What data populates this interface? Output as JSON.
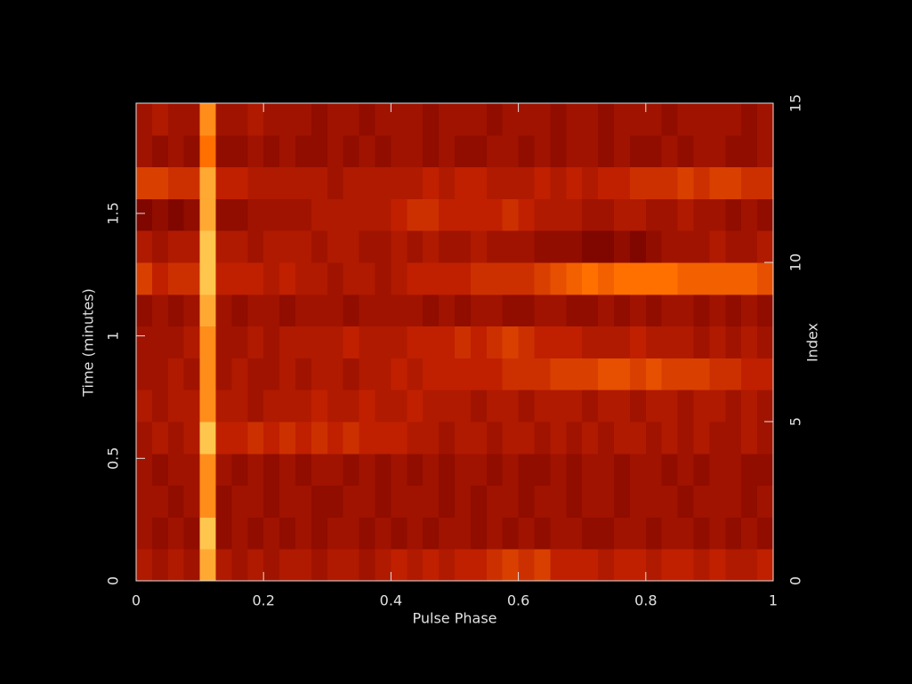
{
  "chart_data": {
    "type": "heatmap",
    "x_label": "Pulse Phase",
    "y_label": "Time (minutes)",
    "y2_label": "Index",
    "xlim": [
      0,
      1
    ],
    "xticks": [
      0,
      0.2,
      0.4,
      0.6,
      0.8,
      1
    ],
    "ylim": [
      0,
      1.95
    ],
    "yticks": [
      0,
      0.5,
      1,
      1.5
    ],
    "y2lim": [
      0,
      15
    ],
    "y2ticks": [
      0,
      5,
      10,
      15
    ],
    "zlim": [
      0,
      1
    ],
    "colormap": [
      "#000000",
      "#700000",
      "#c02000",
      "#ff7000",
      "#ffff80"
    ],
    "z": [
      [
        0.45,
        0.4,
        0.45,
        0.4,
        0.85,
        0.45,
        0.4,
        0.45,
        0.4,
        0.45,
        0.45,
        0.4,
        0.45,
        0.45,
        0.4,
        0.45,
        0.5,
        0.45,
        0.5,
        0.45,
        0.5,
        0.5,
        0.55,
        0.6,
        0.55,
        0.6,
        0.5,
        0.5,
        0.5,
        0.45,
        0.5,
        0.5,
        0.45,
        0.5,
        0.5,
        0.45,
        0.5,
        0.45,
        0.45,
        0.5
      ],
      [
        0.4,
        0.35,
        0.4,
        0.35,
        0.9,
        0.35,
        0.4,
        0.35,
        0.4,
        0.35,
        0.4,
        0.35,
        0.4,
        0.4,
        0.35,
        0.4,
        0.35,
        0.4,
        0.35,
        0.4,
        0.4,
        0.35,
        0.4,
        0.35,
        0.4,
        0.35,
        0.4,
        0.4,
        0.35,
        0.35,
        0.4,
        0.4,
        0.35,
        0.4,
        0.4,
        0.35,
        0.4,
        0.35,
        0.4,
        0.35
      ],
      [
        0.4,
        0.4,
        0.35,
        0.4,
        0.8,
        0.35,
        0.4,
        0.4,
        0.35,
        0.4,
        0.4,
        0.35,
        0.35,
        0.4,
        0.4,
        0.35,
        0.4,
        0.4,
        0.4,
        0.35,
        0.4,
        0.35,
        0.4,
        0.4,
        0.35,
        0.4,
        0.4,
        0.35,
        0.4,
        0.4,
        0.35,
        0.4,
        0.4,
        0.4,
        0.35,
        0.4,
        0.4,
        0.4,
        0.35,
        0.4
      ],
      [
        0.4,
        0.35,
        0.4,
        0.4,
        0.8,
        0.4,
        0.35,
        0.4,
        0.35,
        0.4,
        0.35,
        0.4,
        0.4,
        0.35,
        0.4,
        0.35,
        0.4,
        0.35,
        0.4,
        0.35,
        0.4,
        0.4,
        0.35,
        0.4,
        0.35,
        0.35,
        0.4,
        0.35,
        0.4,
        0.4,
        0.35,
        0.4,
        0.4,
        0.35,
        0.4,
        0.35,
        0.4,
        0.4,
        0.35,
        0.35
      ],
      [
        0.4,
        0.45,
        0.4,
        0.45,
        0.9,
        0.5,
        0.5,
        0.55,
        0.5,
        0.55,
        0.5,
        0.55,
        0.5,
        0.55,
        0.5,
        0.5,
        0.5,
        0.45,
        0.45,
        0.4,
        0.45,
        0.45,
        0.4,
        0.45,
        0.45,
        0.4,
        0.45,
        0.4,
        0.45,
        0.4,
        0.45,
        0.45,
        0.4,
        0.45,
        0.4,
        0.45,
        0.4,
        0.4,
        0.45,
        0.4
      ],
      [
        0.45,
        0.4,
        0.45,
        0.45,
        0.8,
        0.45,
        0.45,
        0.4,
        0.45,
        0.45,
        0.45,
        0.5,
        0.45,
        0.45,
        0.5,
        0.45,
        0.45,
        0.5,
        0.45,
        0.45,
        0.45,
        0.4,
        0.45,
        0.45,
        0.4,
        0.45,
        0.45,
        0.45,
        0.4,
        0.45,
        0.45,
        0.4,
        0.45,
        0.45,
        0.4,
        0.45,
        0.45,
        0.4,
        0.45,
        0.4
      ],
      [
        0.4,
        0.4,
        0.45,
        0.4,
        0.8,
        0.4,
        0.45,
        0.4,
        0.4,
        0.45,
        0.4,
        0.45,
        0.45,
        0.4,
        0.45,
        0.45,
        0.5,
        0.45,
        0.5,
        0.5,
        0.5,
        0.5,
        0.5,
        0.55,
        0.55,
        0.55,
        0.6,
        0.6,
        0.6,
        0.65,
        0.65,
        0.6,
        0.65,
        0.6,
        0.6,
        0.6,
        0.55,
        0.55,
        0.5,
        0.5
      ],
      [
        0.4,
        0.4,
        0.4,
        0.45,
        0.8,
        0.4,
        0.4,
        0.45,
        0.4,
        0.45,
        0.45,
        0.45,
        0.45,
        0.5,
        0.45,
        0.45,
        0.45,
        0.5,
        0.5,
        0.5,
        0.55,
        0.5,
        0.55,
        0.6,
        0.55,
        0.5,
        0.5,
        0.5,
        0.45,
        0.45,
        0.45,
        0.5,
        0.45,
        0.45,
        0.45,
        0.4,
        0.45,
        0.4,
        0.45,
        0.4
      ],
      [
        0.35,
        0.4,
        0.35,
        0.4,
        0.85,
        0.4,
        0.35,
        0.4,
        0.4,
        0.35,
        0.4,
        0.4,
        0.4,
        0.35,
        0.4,
        0.4,
        0.4,
        0.4,
        0.35,
        0.4,
        0.35,
        0.4,
        0.4,
        0.35,
        0.35,
        0.4,
        0.4,
        0.35,
        0.35,
        0.4,
        0.35,
        0.4,
        0.35,
        0.4,
        0.4,
        0.35,
        0.4,
        0.35,
        0.4,
        0.35
      ],
      [
        0.6,
        0.5,
        0.55,
        0.55,
        0.9,
        0.5,
        0.5,
        0.5,
        0.45,
        0.5,
        0.45,
        0.45,
        0.4,
        0.45,
        0.45,
        0.4,
        0.45,
        0.5,
        0.5,
        0.5,
        0.5,
        0.55,
        0.55,
        0.55,
        0.55,
        0.6,
        0.65,
        0.7,
        0.75,
        0.7,
        0.75,
        0.75,
        0.75,
        0.75,
        0.7,
        0.7,
        0.7,
        0.7,
        0.7,
        0.65
      ],
      [
        0.45,
        0.4,
        0.45,
        0.45,
        0.9,
        0.45,
        0.45,
        0.4,
        0.45,
        0.45,
        0.45,
        0.4,
        0.45,
        0.45,
        0.4,
        0.4,
        0.45,
        0.4,
        0.45,
        0.4,
        0.4,
        0.45,
        0.4,
        0.4,
        0.4,
        0.35,
        0.35,
        0.35,
        0.3,
        0.3,
        0.35,
        0.3,
        0.35,
        0.4,
        0.4,
        0.4,
        0.45,
        0.4,
        0.4,
        0.45
      ],
      [
        0.3,
        0.35,
        0.3,
        0.35,
        0.85,
        0.35,
        0.35,
        0.4,
        0.4,
        0.4,
        0.4,
        0.45,
        0.45,
        0.45,
        0.45,
        0.45,
        0.5,
        0.55,
        0.55,
        0.5,
        0.5,
        0.5,
        0.5,
        0.55,
        0.5,
        0.45,
        0.45,
        0.45,
        0.4,
        0.4,
        0.45,
        0.45,
        0.4,
        0.4,
        0.45,
        0.4,
        0.4,
        0.35,
        0.4,
        0.35
      ],
      [
        0.6,
        0.6,
        0.55,
        0.55,
        0.85,
        0.5,
        0.5,
        0.45,
        0.45,
        0.45,
        0.45,
        0.45,
        0.4,
        0.45,
        0.45,
        0.45,
        0.45,
        0.45,
        0.5,
        0.45,
        0.5,
        0.5,
        0.45,
        0.45,
        0.45,
        0.5,
        0.45,
        0.5,
        0.45,
        0.5,
        0.5,
        0.55,
        0.55,
        0.55,
        0.6,
        0.55,
        0.6,
        0.6,
        0.55,
        0.55
      ],
      [
        0.4,
        0.35,
        0.4,
        0.35,
        0.75,
        0.35,
        0.35,
        0.4,
        0.35,
        0.4,
        0.35,
        0.35,
        0.4,
        0.35,
        0.4,
        0.35,
        0.4,
        0.4,
        0.35,
        0.4,
        0.35,
        0.35,
        0.4,
        0.4,
        0.35,
        0.4,
        0.35,
        0.4,
        0.4,
        0.35,
        0.4,
        0.35,
        0.35,
        0.4,
        0.35,
        0.4,
        0.4,
        0.35,
        0.35,
        0.4
      ],
      [
        0.4,
        0.45,
        0.4,
        0.4,
        0.8,
        0.4,
        0.4,
        0.45,
        0.4,
        0.4,
        0.4,
        0.35,
        0.4,
        0.4,
        0.35,
        0.4,
        0.4,
        0.4,
        0.35,
        0.4,
        0.4,
        0.4,
        0.35,
        0.4,
        0.4,
        0.4,
        0.35,
        0.4,
        0.4,
        0.35,
        0.4,
        0.4,
        0.4,
        0.35,
        0.4,
        0.4,
        0.4,
        0.4,
        0.35,
        0.4
      ]
    ]
  }
}
